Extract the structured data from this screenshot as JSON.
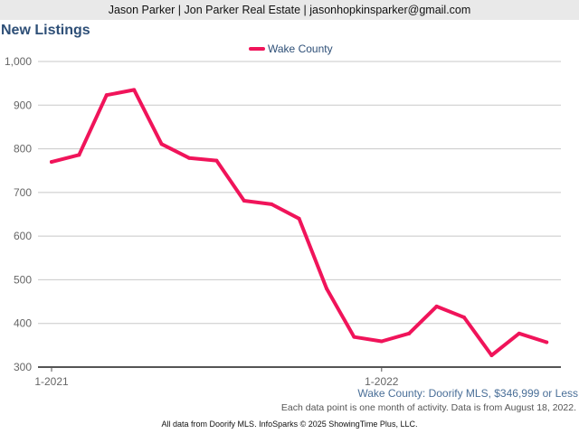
{
  "header": {
    "text": "Jason Parker | Jon Parker Real Estate | jasonhopkinsparker@gmail.com"
  },
  "chart_data": {
    "type": "line",
    "title": "New Listings",
    "x": [
      "1-2021",
      "2-2021",
      "3-2021",
      "4-2021",
      "5-2021",
      "6-2021",
      "7-2021",
      "8-2021",
      "9-2021",
      "10-2021",
      "11-2021",
      "12-2021",
      "1-2022",
      "2-2022",
      "3-2022",
      "4-2022",
      "5-2022",
      "6-2022",
      "7-2022"
    ],
    "x_tick_labels": [
      {
        "index": 0,
        "label": "1-2021"
      },
      {
        "index": 12,
        "label": "1-2022"
      }
    ],
    "series": [
      {
        "name": "Wake County",
        "color": "#f0145a",
        "values": [
          770,
          786,
          923,
          935,
          811,
          779,
          773,
          681,
          673,
          640,
          480,
          369,
          359,
          377,
          439,
          414,
          327,
          377,
          357
        ]
      }
    ],
    "ylim": [
      300,
      1000
    ],
    "y_ticks": [
      {
        "value": 300,
        "label": "300"
      },
      {
        "value": 400,
        "label": "400"
      },
      {
        "value": 500,
        "label": "500"
      },
      {
        "value": 600,
        "label": "600"
      },
      {
        "value": 700,
        "label": "700"
      },
      {
        "value": 800,
        "label": "800"
      },
      {
        "value": 900,
        "label": "900"
      },
      {
        "value": 1000,
        "label": "1,000"
      }
    ],
    "grid": true,
    "legend_position": "top-center",
    "xlabel": "",
    "ylabel": ""
  },
  "source_line": "Wake County: Doorify MLS, $346,999 or Less",
  "note": "Each data point is one month of activity. Data is from August 18, 2022.",
  "footer": "All data from Doorify MLS. InfoSparks © 2025 ShowingTime Plus, LLC."
}
